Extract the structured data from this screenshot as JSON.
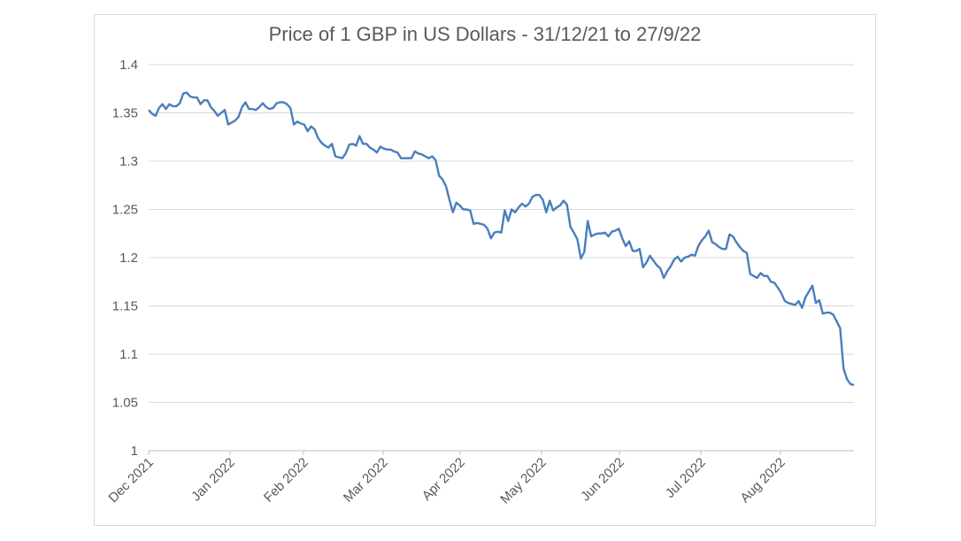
{
  "chart_data": {
    "type": "line",
    "title": "Price of 1 GBP in US Dollars - 31/12/21 to 27/9/22",
    "xlabel": "",
    "ylabel": "",
    "ylim": [
      1,
      1.4
    ],
    "y_ticks": [
      "1",
      "1.05",
      "1.1",
      "1.15",
      "1.2",
      "1.25",
      "1.3",
      "1.35",
      "1.4"
    ],
    "x_ticks": [
      "Dec 2021",
      "Jan 2022",
      "Feb 2022",
      "Mar 2022",
      "Apr 2022",
      "May 2022",
      "Jun 2022",
      "Jul 2022",
      "Aug 2022"
    ],
    "grid": true,
    "legend": "none",
    "series": [
      {
        "color": "#4a7ebb",
        "values": [
          1.353,
          1.349,
          1.347,
          1.355,
          1.359,
          1.354,
          1.359,
          1.357,
          1.357,
          1.36,
          1.37,
          1.371,
          1.367,
          1.366,
          1.366,
          1.359,
          1.363,
          1.363,
          1.356,
          1.352,
          1.347,
          1.35,
          1.353,
          1.338,
          1.34,
          1.342,
          1.346,
          1.356,
          1.361,
          1.354,
          1.354,
          1.353,
          1.356,
          1.36,
          1.356,
          1.354,
          1.355,
          1.36,
          1.361,
          1.361,
          1.359,
          1.355,
          1.338,
          1.341,
          1.339,
          1.338,
          1.331,
          1.336,
          1.333,
          1.324,
          1.319,
          1.316,
          1.314,
          1.318,
          1.305,
          1.304,
          1.303,
          1.308,
          1.317,
          1.318,
          1.316,
          1.326,
          1.318,
          1.318,
          1.314,
          1.312,
          1.309,
          1.315,
          1.313,
          1.312,
          1.312,
          1.31,
          1.309,
          1.303,
          1.303,
          1.303,
          1.303,
          1.31,
          1.308,
          1.307,
          1.305,
          1.303,
          1.305,
          1.301,
          1.285,
          1.281,
          1.274,
          1.26,
          1.247,
          1.257,
          1.254,
          1.25,
          1.25,
          1.249,
          1.235,
          1.236,
          1.235,
          1.234,
          1.23,
          1.22,
          1.226,
          1.227,
          1.226,
          1.249,
          1.238,
          1.25,
          1.247,
          1.252,
          1.256,
          1.253,
          1.256,
          1.263,
          1.265,
          1.265,
          1.26,
          1.247,
          1.259,
          1.249,
          1.252,
          1.254,
          1.259,
          1.255,
          1.232,
          1.226,
          1.219,
          1.199,
          1.206,
          1.238,
          1.222,
          1.224,
          1.225,
          1.225,
          1.226,
          1.222,
          1.227,
          1.228,
          1.23,
          1.22,
          1.212,
          1.217,
          1.207,
          1.207,
          1.209,
          1.19,
          1.195,
          1.202,
          1.197,
          1.192,
          1.189,
          1.179,
          1.186,
          1.191,
          1.198,
          1.201,
          1.196,
          1.2,
          1.201,
          1.203,
          1.202,
          1.212,
          1.218,
          1.222,
          1.228,
          1.216,
          1.214,
          1.211,
          1.209,
          1.209,
          1.224,
          1.222,
          1.216,
          1.211,
          1.207,
          1.205,
          1.183,
          1.181,
          1.179,
          1.184,
          1.181,
          1.181,
          1.175,
          1.174,
          1.169,
          1.163,
          1.155,
          1.153,
          1.152,
          1.151,
          1.155,
          1.148,
          1.159,
          1.165,
          1.171,
          1.153,
          1.156,
          1.142,
          1.143,
          1.143,
          1.141,
          1.134,
          1.127,
          1.085,
          1.074,
          1.069,
          1.068
        ]
      }
    ]
  }
}
